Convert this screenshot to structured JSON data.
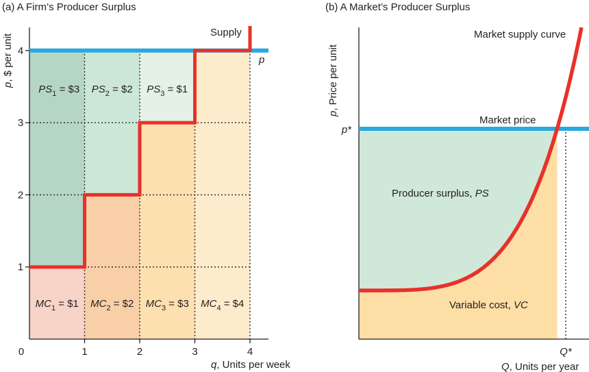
{
  "colors": {
    "supply": "#e8312a",
    "price": "#2aa8e0",
    "ps_1": "#b5d6c5",
    "ps_2": "#cde7d6",
    "ps_3": "#e3f1e6",
    "mc_1": "#f8d3c8",
    "mc_2": "#f9cfa8",
    "mc_3": "#fde0b0",
    "mc_4": "#fdeccc",
    "ps_area": "#cfe8d9",
    "vc_area": "#fddfa6",
    "axis": "#231f20",
    "grid": "#231f20"
  },
  "chart_data": [
    {
      "type": "area",
      "title": "(a) A Firm’s Producer Surplus",
      "xlabel_var": "q",
      "xlabel_text": ", Units per week",
      "ylabel_var": "p",
      "ylabel_text": ", $ per unit",
      "xlim": [
        0,
        4.35
      ],
      "ylim": [
        0,
        4.35
      ],
      "x_ticks": [
        "0",
        "1",
        "2",
        "3",
        "4"
      ],
      "y_ticks": [
        "1",
        "2",
        "3",
        "4"
      ],
      "grid": "dotted at integer values",
      "price": 4,
      "price_label": "p",
      "supply_label": "Supply",
      "supply_steps": [
        {
          "q_from": 0,
          "q_to": 1,
          "mc": 1
        },
        {
          "q_from": 1,
          "q_to": 2,
          "mc": 2
        },
        {
          "q_from": 2,
          "q_to": 3,
          "mc": 3
        },
        {
          "q_from": 3,
          "q_to": 4,
          "mc": 4
        }
      ],
      "producer_surplus": [
        {
          "sym": "PS",
          "sub": "1",
          "val": " = $3"
        },
        {
          "sym": "PS",
          "sub": "2",
          "val": " = $2"
        },
        {
          "sym": "PS",
          "sub": "3",
          "val": " = $1"
        }
      ],
      "marginal_cost": [
        {
          "sym": "MC",
          "sub": "1",
          "val": " = $1"
        },
        {
          "sym": "MC",
          "sub": "2",
          "val": " = $2"
        },
        {
          "sym": "MC",
          "sub": "3",
          "val": " = $3"
        },
        {
          "sym": "MC",
          "sub": "4",
          "val": " = $4"
        }
      ]
    },
    {
      "type": "area",
      "title": "(b) A Market’s Producer Surplus",
      "xlabel_var": "Q",
      "xlabel_text": ", Units per year",
      "ylabel_var": "p",
      "ylabel_text": ", Price per unit",
      "price_tick": "p*",
      "quantity_tick": "Q*",
      "supply_label": "Market supply curve",
      "price_label": "Market price",
      "ps_label_text": "Producer surplus, ",
      "ps_label_var": "PS",
      "vc_label_text": "Variable cost, ",
      "vc_label_var": "VC"
    }
  ]
}
